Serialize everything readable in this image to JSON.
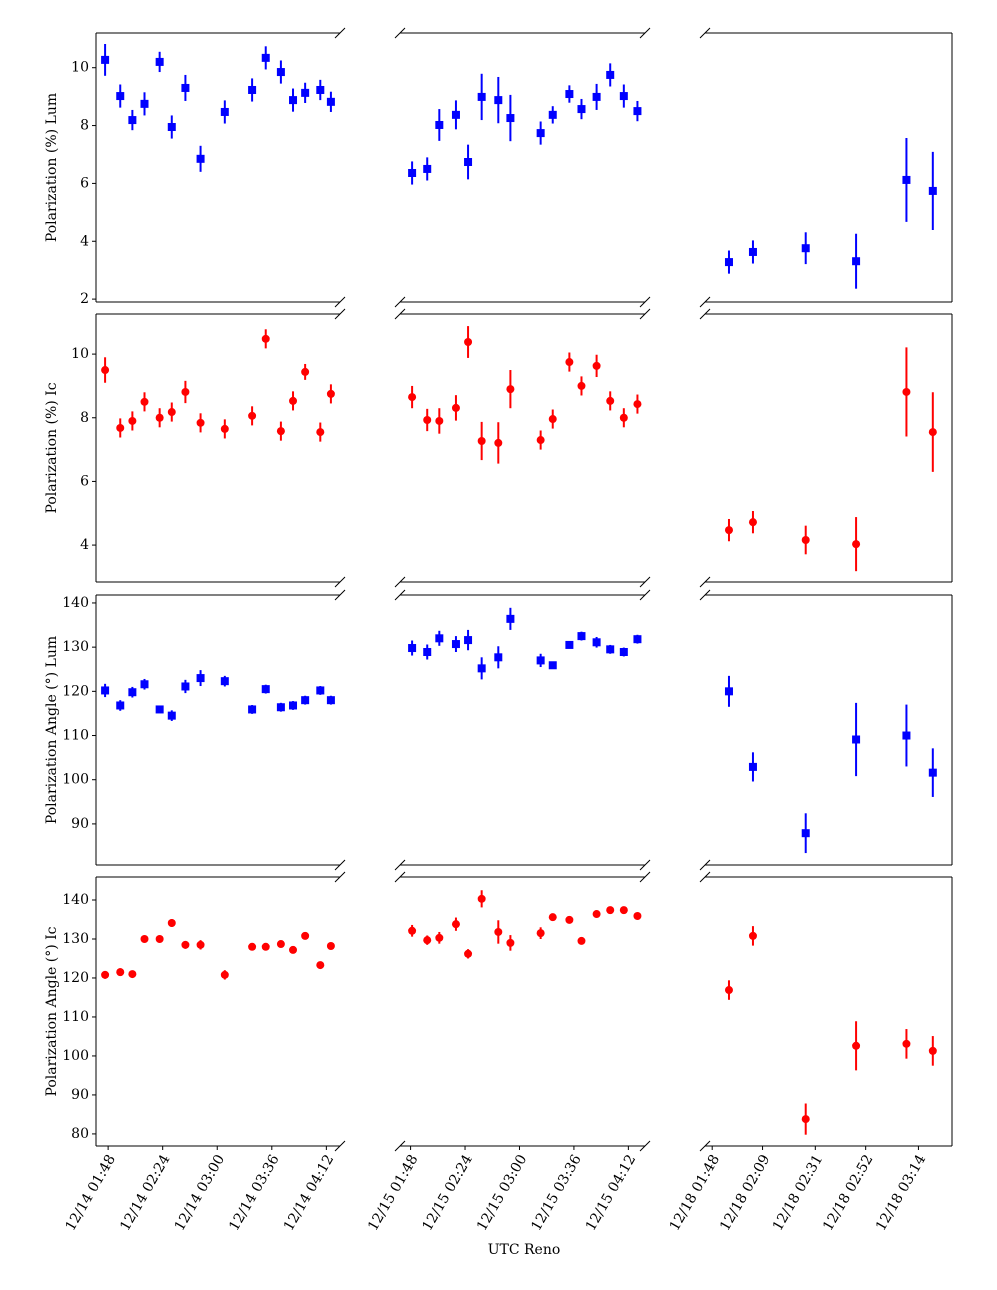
{
  "chart_data": {
    "type": "scatter",
    "xlabel": "UTC Reno",
    "columns": [
      {
        "xlim": [
          "12/14 01:40",
          "12/14 04:21"
        ],
        "xticks": [
          "12/14 01:48",
          "12/14 02:24",
          "12/14 03:00",
          "12/14 03:36",
          "12/14 04:12"
        ],
        "x": [
          "12/14 01:46",
          "12/14 01:56",
          "12/14 02:04",
          "12/14 02:12",
          "12/14 02:22",
          "12/14 02:30",
          "12/14 02:39",
          "12/14 02:49",
          "12/14 03:05",
          "12/14 03:23",
          "12/14 03:32",
          "12/14 03:42",
          "12/14 03:50",
          "12/14 03:58",
          "12/14 04:08",
          "12/14 04:15"
        ]
      },
      {
        "xlim": [
          "12/15 01:41",
          "12/15 04:23"
        ],
        "xticks": [
          "12/15 01:48",
          "12/15 02:24",
          "12/15 03:00",
          "12/15 03:36",
          "12/15 04:12"
        ],
        "x": [
          "12/15 01:49",
          "12/15 01:59",
          "12/15 02:07",
          "12/15 02:18",
          "12/15 02:26",
          "12/15 02:35",
          "12/15 02:46",
          "12/15 02:54",
          "12/15 03:14",
          "12/15 03:22",
          "12/15 03:33",
          "12/15 03:41",
          "12/15 03:51",
          "12/15 04:00",
          "12/15 04:09",
          "12/15 04:18"
        ]
      },
      {
        "xlim": [
          "12/18 01:45",
          "12/18 03:28"
        ],
        "xticks": [
          "12/18 01:48",
          "12/18 02:09",
          "12/18 02:31",
          "12/18 02:52",
          "12/18 03:14"
        ],
        "x": [
          "12/18 01:55",
          "12/18 02:05",
          "12/18 02:27",
          "12/18 02:48",
          "12/18 03:09",
          "12/18 03:20"
        ]
      }
    ],
    "rows": [
      {
        "ylabel": "Polarization (%) Lum",
        "color": "#0000ff",
        "marker": "square",
        "ylim": [
          1.9,
          11.2
        ],
        "yticks": [
          2,
          4,
          6,
          8,
          10
        ],
        "panels": [
          {
            "values": [
              10.27,
              9.02,
              8.19,
              8.75,
              10.2,
              7.95,
              9.3,
              6.85,
              8.47,
              9.23,
              10.34,
              9.85,
              8.88,
              9.13,
              9.23,
              8.82
            ],
            "errors": [
              0.55,
              0.4,
              0.35,
              0.4,
              0.35,
              0.4,
              0.45,
              0.45,
              0.4,
              0.4,
              0.4,
              0.4,
              0.4,
              0.35,
              0.35,
              0.35
            ]
          },
          {
            "values": [
              6.36,
              6.5,
              8.02,
              8.37,
              6.74,
              8.99,
              8.88,
              8.26,
              7.74,
              8.37,
              9.09,
              8.57,
              8.99,
              9.75,
              9.02,
              8.5
            ],
            "errors": [
              0.4,
              0.4,
              0.55,
              0.5,
              0.6,
              0.8,
              0.8,
              0.8,
              0.4,
              0.3,
              0.3,
              0.35,
              0.45,
              0.4,
              0.4,
              0.35
            ]
          },
          {
            "values": [
              3.28,
              3.63,
              3.76,
              3.31,
              6.12,
              5.74
            ],
            "errors": [
              0.4,
              0.4,
              0.55,
              0.95,
              1.45,
              1.35
            ]
          }
        ]
      },
      {
        "ylabel": "Polarization (%) Ic",
        "color": "#ff0000",
        "marker": "circle",
        "ylim": [
          2.84,
          11.26
        ],
        "yticks": [
          4,
          6,
          8,
          10
        ],
        "panels": [
          {
            "values": [
              9.5,
              7.68,
              7.9,
              8.5,
              8.0,
              8.18,
              8.81,
              7.84,
              7.65,
              8.06,
              10.48,
              7.58,
              8.53,
              9.44,
              7.55,
              8.75
            ],
            "errors": [
              0.4,
              0.3,
              0.3,
              0.3,
              0.3,
              0.3,
              0.35,
              0.3,
              0.3,
              0.3,
              0.3,
              0.3,
              0.3,
              0.25,
              0.3,
              0.3
            ]
          },
          {
            "values": [
              8.65,
              7.93,
              7.9,
              8.31,
              10.38,
              7.27,
              7.21,
              8.9,
              7.3,
              7.96,
              9.75,
              9.0,
              9.63,
              8.53,
              8.0,
              8.43
            ],
            "errors": [
              0.35,
              0.35,
              0.4,
              0.4,
              0.5,
              0.6,
              0.65,
              0.6,
              0.3,
              0.3,
              0.3,
              0.3,
              0.35,
              0.3,
              0.3,
              0.3
            ]
          },
          {
            "values": [
              4.47,
              4.72,
              4.16,
              4.03,
              8.81,
              7.55
            ],
            "errors": [
              0.35,
              0.35,
              0.45,
              0.85,
              1.4,
              1.25
            ]
          }
        ]
      },
      {
        "ylabel": "Polarization Angle (°) Lum",
        "color": "#0000ff",
        "marker": "square",
        "ylim": [
          80.7,
          141.8
        ],
        "yticks": [
          90,
          100,
          110,
          120,
          130,
          140
        ],
        "panels": [
          {
            "values": [
              120.2,
              116.8,
              119.8,
              121.6,
              115.9,
              114.5,
              121.1,
              123.0,
              122.3,
              115.9,
              120.5,
              116.4,
              116.8,
              118.0,
              120.2,
              118.0
            ],
            "errors": [
              1.5,
              1.2,
              1.2,
              1.2,
              0.8,
              1.2,
              1.5,
              1.8,
              1.2,
              1,
              1,
              1,
              1,
              1,
              1,
              1
            ]
          },
          {
            "values": [
              129.8,
              128.9,
              132.0,
              130.7,
              131.6,
              125.2,
              127.7,
              136.4,
              127.0,
              125.9,
              130.5,
              132.5,
              131.1,
              129.5,
              128.9,
              131.8
            ],
            "errors": [
              1.7,
              1.7,
              1.7,
              1.8,
              2.3,
              2.5,
              2.5,
              2.5,
              1.5,
              0.8,
              0.8,
              1,
              1.2,
              1,
              1,
              1
            ]
          },
          {
            "values": [
              120.0,
              102.9,
              87.9,
              109.1,
              110.0,
              101.6
            ],
            "errors": [
              3.5,
              3.3,
              4.5,
              8.3,
              7,
              5.5
            ]
          }
        ]
      },
      {
        "ylabel": "Polarization Angle (°) Ic",
        "color": "#ff0000",
        "marker": "circle",
        "ylim": [
          76.9,
          145.9
        ],
        "yticks": [
          80,
          90,
          100,
          110,
          120,
          130,
          140
        ],
        "panels": [
          {
            "values": [
              120.8,
              121.5,
              121.0,
              130.0,
              130.0,
              134.1,
              128.5,
              128.5,
              120.8,
              128.0,
              128.0,
              128.7,
              127.2,
              130.8,
              123.3,
              128.2
            ],
            "errors": [
              1,
              1,
              0.8,
              0.8,
              0.8,
              1,
              1,
              1.2,
              1.2,
              0.8,
              0.8,
              0.8,
              0.8,
              0.8,
              0.8,
              0.8
            ]
          },
          {
            "values": [
              132.1,
              129.7,
              130.3,
              133.8,
              126.2,
              140.3,
              131.8,
              129.0,
              131.5,
              135.6,
              134.9,
              129.5,
              136.4,
              137.4,
              137.4,
              135.9
            ],
            "errors": [
              1.5,
              1.2,
              1.5,
              1.7,
              1.2,
              2.2,
              3,
              2,
              1.5,
              0.8,
              0.8,
              0.8,
              0.8,
              0.8,
              0.8,
              0.8
            ]
          },
          {
            "values": [
              116.9,
              130.8,
              83.8,
              102.6,
              103.1,
              101.3
            ],
            "errors": [
              2.5,
              2.5,
              4,
              6.3,
              3.8,
              3.8
            ]
          }
        ]
      }
    ]
  }
}
